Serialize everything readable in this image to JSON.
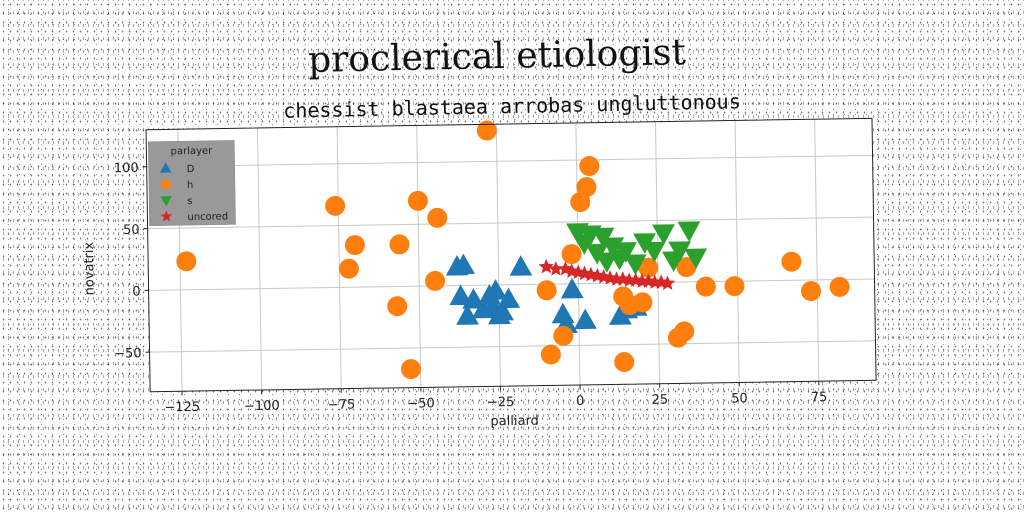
{
  "chart_data": {
    "type": "scatter",
    "title": "proclerical etiologist",
    "subtitle": "chessist blastaea arrobas ungluttonous",
    "xlabel": "palliard",
    "ylabel": "novatrix",
    "xlim": [
      -135,
      93
    ],
    "ylim": [
      -82,
      130
    ],
    "xticks": [
      -125,
      -100,
      -75,
      -50,
      -25,
      0,
      25,
      50,
      75
    ],
    "yticks": [
      -50,
      0,
      50,
      100
    ],
    "grid": true,
    "legend": {
      "title": "parlayer",
      "placement": "top-left"
    },
    "series": [
      {
        "name": "D",
        "marker": "triangle-up",
        "color": "#1f77b4",
        "points": [
          [
            -38,
            15
          ],
          [
            -36,
            16
          ],
          [
            -37,
            -9
          ],
          [
            -35,
            -25
          ],
          [
            -33,
            -12
          ],
          [
            -30,
            -20
          ],
          [
            -28,
            -9
          ],
          [
            -27,
            -18
          ],
          [
            -26,
            -5
          ],
          [
            -25,
            -25
          ],
          [
            -24,
            -22
          ],
          [
            -22,
            -12
          ],
          [
            -18,
            14
          ],
          [
            -5,
            -25
          ],
          [
            -4,
            -33
          ],
          [
            -2,
            -5
          ],
          [
            2,
            -30
          ],
          [
            13,
            -27
          ],
          [
            15,
            -22
          ],
          [
            18,
            -20
          ]
        ]
      },
      {
        "name": "h",
        "marker": "circle",
        "color": "#ff7f0e",
        "points": [
          [
            -123,
            23
          ],
          [
            -76,
            66
          ],
          [
            -72,
            15
          ],
          [
            -70,
            34
          ],
          [
            -57,
            -16
          ],
          [
            -56,
            34
          ],
          [
            -53,
            -67
          ],
          [
            -50,
            69
          ],
          [
            -45,
            4
          ],
          [
            -44,
            55
          ],
          [
            -28,
            125
          ],
          [
            -10,
            -5
          ],
          [
            -9,
            -57
          ],
          [
            -5,
            -42
          ],
          [
            -2,
            24
          ],
          [
            1,
            66
          ],
          [
            3,
            78
          ],
          [
            4,
            95
          ],
          [
            14,
            -11
          ],
          [
            14,
            -64
          ],
          [
            16,
            -18
          ],
          [
            20,
            -16
          ],
          [
            22,
            12
          ],
          [
            31,
            -45
          ],
          [
            33,
            -40
          ],
          [
            34,
            12
          ],
          [
            40,
            -4
          ],
          [
            49,
            -4
          ],
          [
            67,
            15
          ],
          [
            73,
            -9
          ],
          [
            82,
            -6
          ]
        ]
      },
      {
        "name": "s",
        "marker": "triangle-down",
        "color": "#2ca02c",
        "points": [
          [
            0,
            42
          ],
          [
            2,
            33
          ],
          [
            4,
            40
          ],
          [
            6,
            25
          ],
          [
            8,
            38
          ],
          [
            9,
            18
          ],
          [
            11,
            30
          ],
          [
            13,
            20
          ],
          [
            15,
            26
          ],
          [
            18,
            16
          ],
          [
            21,
            33
          ],
          [
            24,
            26
          ],
          [
            27,
            40
          ],
          [
            30,
            18
          ],
          [
            32,
            26
          ],
          [
            35,
            42
          ],
          [
            37,
            20
          ]
        ]
      },
      {
        "name": "uncored",
        "marker": "star",
        "color": "#d62728",
        "points": [
          [
            -10,
            14
          ],
          [
            -7,
            12
          ],
          [
            -4,
            12
          ],
          [
            -2,
            10
          ],
          [
            0,
            9
          ],
          [
            2,
            8
          ],
          [
            4,
            7
          ],
          [
            6,
            6
          ],
          [
            8,
            5
          ],
          [
            10,
            4
          ],
          [
            12,
            3
          ],
          [
            14,
            3
          ],
          [
            16,
            2
          ],
          [
            18,
            2
          ],
          [
            20,
            1
          ],
          [
            22,
            1
          ],
          [
            24,
            0
          ],
          [
            26,
            0
          ],
          [
            28,
            -1
          ]
        ]
      }
    ]
  }
}
